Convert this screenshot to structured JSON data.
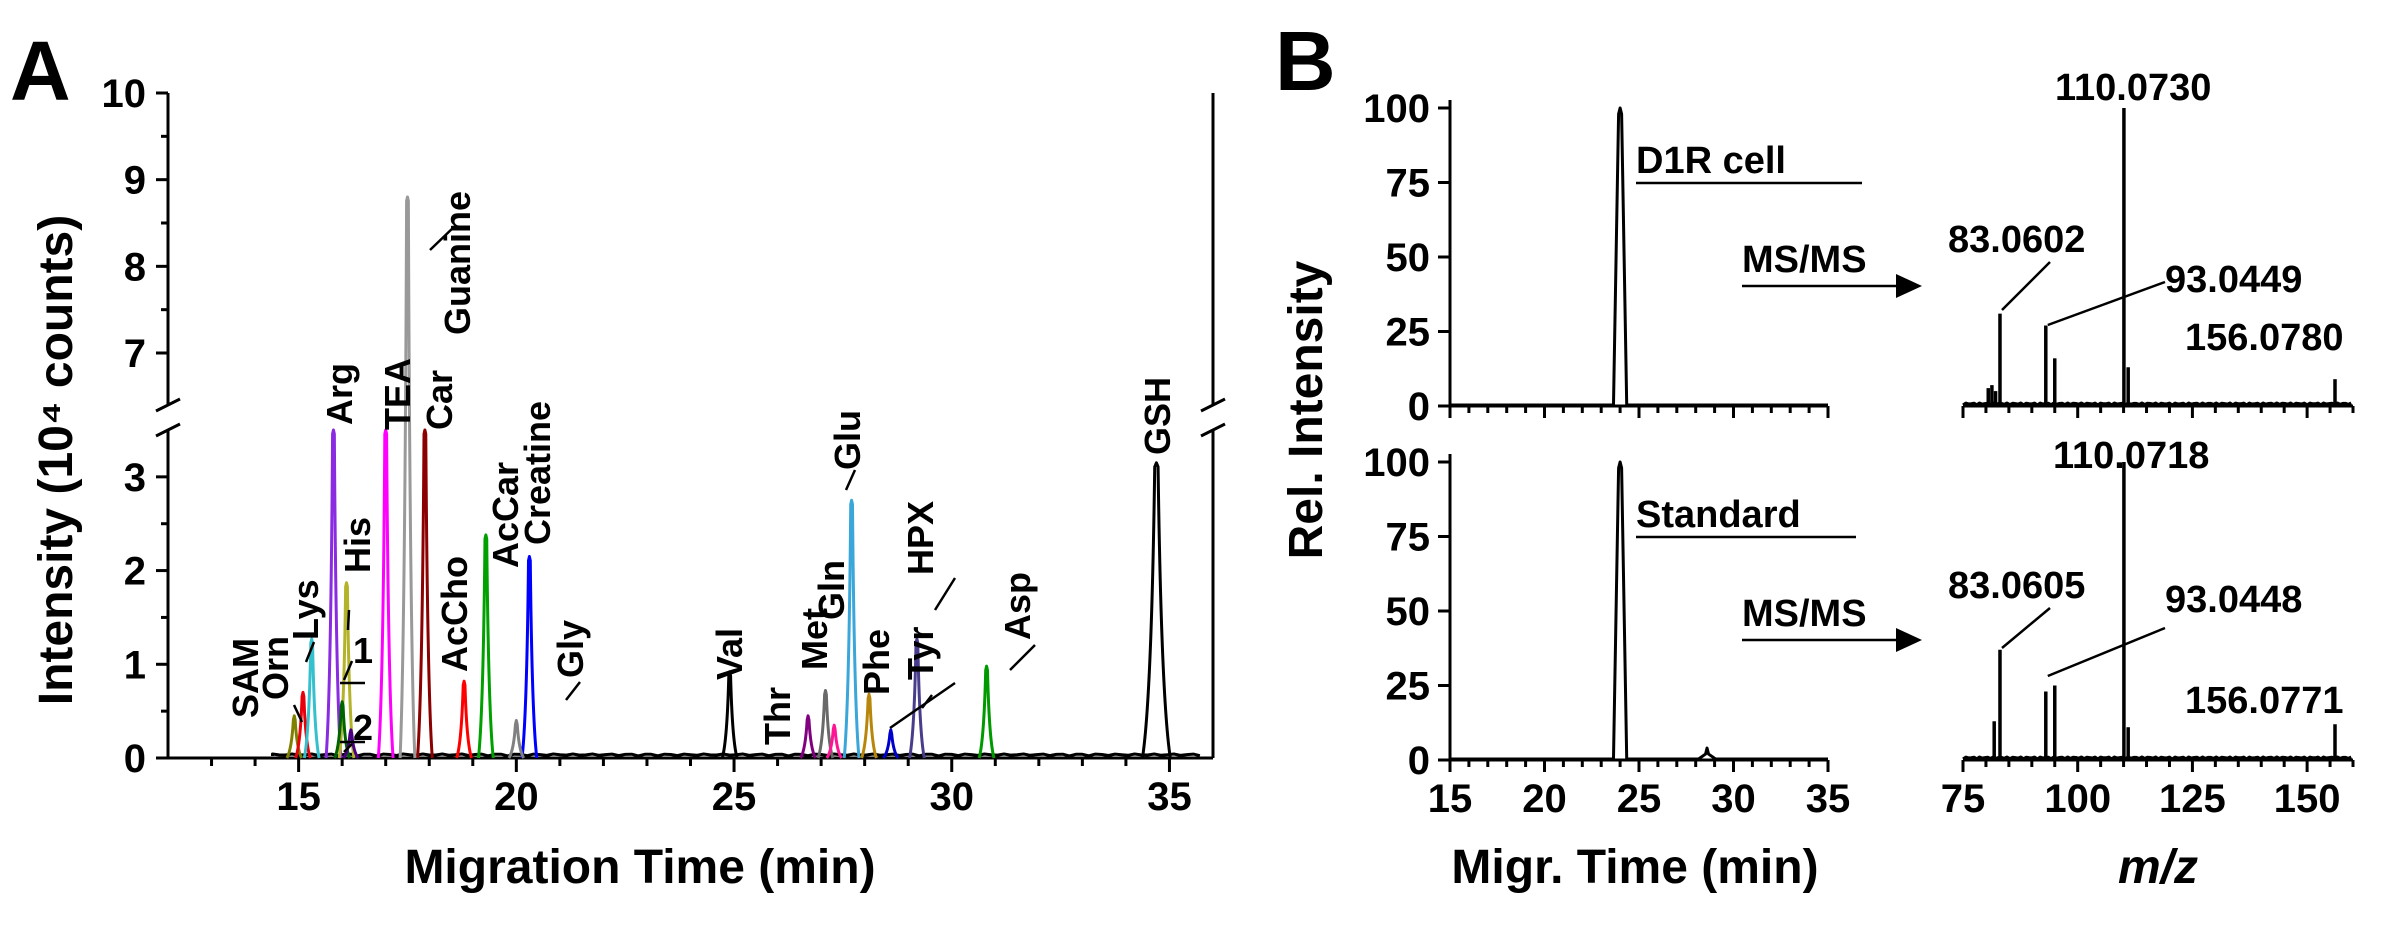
{
  "panels": {
    "a_letter": "A",
    "b_letter": "B"
  },
  "chart_data": [
    {
      "type": "line",
      "panel": "A",
      "xlabel": "Migration Time (min)",
      "ylabel": "Intensity (10⁴ counts)",
      "xlim": [
        12,
        36
      ],
      "x_ticks": [
        15,
        20,
        25,
        30,
        35
      ],
      "y_lower_range": [
        0,
        3.5
      ],
      "y_lower_ticks": [
        0,
        1,
        2,
        3
      ],
      "y_upper_range": [
        6.4,
        10
      ],
      "y_upper_ticks": [
        7,
        8,
        9,
        10
      ],
      "axis_break": true,
      "grid": false,
      "peaks": [
        {
          "label": "SAM",
          "x": 14.9,
          "y": 0.45,
          "color": "#808000"
        },
        {
          "label": "Orn",
          "x": 15.1,
          "y": 0.7,
          "color": "#e8000b"
        },
        {
          "label": "Lys",
          "x": 15.3,
          "y": 1.27,
          "color": "#35c0cd"
        },
        {
          "label": "Arg",
          "x": 15.8,
          "y": 3.5,
          "color": "#8a2be2"
        },
        {
          "label": "His",
          "x": 16.1,
          "y": 1.87,
          "color": "#b3b32a"
        },
        {
          "label": "1",
          "x": 16.0,
          "y": 0.6,
          "color": "#006400"
        },
        {
          "label": "2",
          "x": 16.2,
          "y": 0.3,
          "color": "#4b0082"
        },
        {
          "label": "TEA",
          "x": 17.0,
          "y": 3.5,
          "color": "#ff00ff"
        },
        {
          "label": "Car",
          "x": 17.9,
          "y": 3.5,
          "color": "#8b0000"
        },
        {
          "label": "Guanine",
          "x": 17.5,
          "y": 8.8,
          "color": "#999999"
        },
        {
          "label": "AcCho",
          "x": 18.8,
          "y": 0.82,
          "color": "#ff0000"
        },
        {
          "label": "AcCar",
          "x": 19.3,
          "y": 2.38,
          "color": "#00a000"
        },
        {
          "label": "Creatine",
          "x": 20.3,
          "y": 2.15,
          "color": "#0000ff"
        },
        {
          "label": "Gly",
          "x": 20.0,
          "y": 0.4,
          "color": "#808080"
        },
        {
          "label": "Val",
          "x": 24.9,
          "y": 0.92,
          "color": "#000000"
        },
        {
          "label": "Thr",
          "x": 26.7,
          "y": 0.45,
          "color": "#800080"
        },
        {
          "label": "Met",
          "x": 27.1,
          "y": 0.72,
          "color": "#696969"
        },
        {
          "label": "Gln",
          "x": 27.3,
          "y": 0.35,
          "color": "#ff1493"
        },
        {
          "label": "Glu",
          "x": 27.7,
          "y": 2.75,
          "color": "#3aa6d9"
        },
        {
          "label": "Phe",
          "x": 28.1,
          "y": 0.68,
          "color": "#b8860b"
        },
        {
          "label": "Tyr",
          "x": 28.6,
          "y": 0.3,
          "color": "#0000cd"
        },
        {
          "label": "HPX",
          "x": 29.2,
          "y": 1.27,
          "color": "#483d8b"
        },
        {
          "label": "Asp",
          "x": 30.8,
          "y": 0.98,
          "color": "#009900"
        },
        {
          "label": "GSH",
          "x": 34.7,
          "y": 3.15,
          "color": "#000000"
        }
      ],
      "peak_labels": [
        {
          "text": "SAM",
          "rotated": true
        },
        {
          "text": "Orn",
          "rotated": true
        },
        {
          "text": "Lys",
          "rotated": true
        },
        {
          "text": "Arg",
          "rotated": true
        },
        {
          "text": "His",
          "rotated": true
        },
        {
          "text": "1",
          "rotated": false
        },
        {
          "text": "2",
          "rotated": false
        },
        {
          "text": "TEA",
          "rotated": true
        },
        {
          "text": "Car",
          "rotated": true
        },
        {
          "text": "Guanine",
          "rotated": true
        },
        {
          "text": "AcCho",
          "rotated": true
        },
        {
          "text": "AcCar",
          "rotated": true
        },
        {
          "text": "Creatine",
          "rotated": true
        },
        {
          "text": "Gly",
          "rotated": true
        },
        {
          "text": "Val",
          "rotated": true
        },
        {
          "text": "Thr",
          "rotated": true
        },
        {
          "text": "Met",
          "rotated": true
        },
        {
          "text": "Gln",
          "rotated": true
        },
        {
          "text": "Glu",
          "rotated": true
        },
        {
          "text": "Phe",
          "rotated": true
        },
        {
          "text": "Tyr",
          "rotated": true
        },
        {
          "text": "HPX",
          "rotated": true
        },
        {
          "text": "Asp",
          "rotated": true
        },
        {
          "text": "GSH",
          "rotated": true
        }
      ]
    },
    {
      "type": "line",
      "panel": "B",
      "subpanel": "B-top-left",
      "label": "D1R cell",
      "xlim": [
        15,
        35
      ],
      "ylim": [
        0,
        100
      ],
      "x_ticks": [
        15,
        20,
        25,
        30,
        35
      ],
      "y_ticks": [
        0,
        25,
        50,
        75,
        100
      ],
      "peaks": [
        {
          "x": 24.0,
          "y": 100
        }
      ],
      "arrow_label": "MS/MS"
    },
    {
      "type": "line",
      "panel": "B",
      "subpanel": "B-bottom-left",
      "label": "Standard",
      "xlabel": "Migr. Time (min)",
      "ylabel": "Rel. Intensity",
      "xlim": [
        15,
        35
      ],
      "ylim": [
        0,
        100
      ],
      "x_ticks": [
        15,
        20,
        25,
        30,
        35
      ],
      "y_ticks": [
        0,
        25,
        50,
        75,
        100
      ],
      "peaks": [
        {
          "x": 24.0,
          "y": 100
        },
        {
          "x": 28.6,
          "y": 4
        }
      ],
      "arrow_label": "MS/MS"
    },
    {
      "type": "bar",
      "panel": "B",
      "subpanel": "B-top-right",
      "xlim": [
        75,
        160
      ],
      "ylim": [
        0,
        100
      ],
      "sticks": [
        {
          "mz": 80.5,
          "y": 6
        },
        {
          "mz": 81.3,
          "y": 7
        },
        {
          "mz": 82.1,
          "y": 5
        },
        {
          "mz": 83.0602,
          "y": 31,
          "label": "83.0602"
        },
        {
          "mz": 93.0449,
          "y": 27,
          "label": "93.0449"
        },
        {
          "mz": 95.0,
          "y": 16
        },
        {
          "mz": 110.073,
          "y": 100,
          "label": "110.0730"
        },
        {
          "mz": 111.0,
          "y": 13
        },
        {
          "mz": 156.078,
          "y": 9,
          "label": "156.0780"
        }
      ]
    },
    {
      "type": "bar",
      "panel": "B",
      "subpanel": "B-bottom-right",
      "xlabel": "m/z",
      "xlim": [
        75,
        160
      ],
      "ylim": [
        0,
        100
      ],
      "x_ticks": [
        75,
        100,
        125,
        150
      ],
      "sticks": [
        {
          "mz": 81.8,
          "y": 13
        },
        {
          "mz": 83.0605,
          "y": 37,
          "label": "83.0605"
        },
        {
          "mz": 93.0448,
          "y": 23,
          "label": "93.0448"
        },
        {
          "mz": 95.0,
          "y": 25
        },
        {
          "mz": 110.0718,
          "y": 100,
          "label": "110.0718"
        },
        {
          "mz": 111.0,
          "y": 11
        },
        {
          "mz": 156.0771,
          "y": 12,
          "label": "156.0771"
        }
      ]
    }
  ]
}
